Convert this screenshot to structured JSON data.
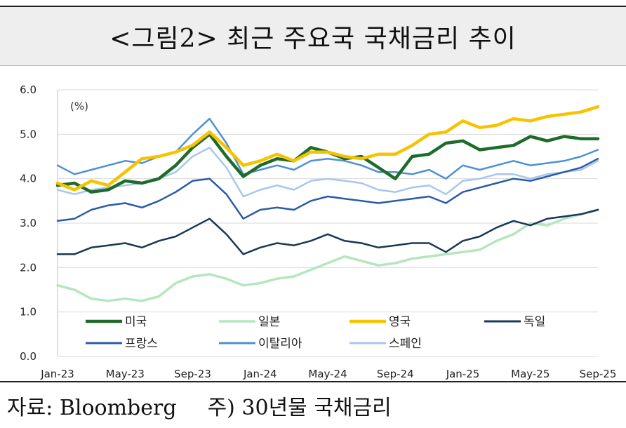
{
  "title": "<그림2> 최근 주요국 국채금리 추이",
  "footer": {
    "source": "자료: Bloomberg",
    "note": "주) 30년물 국채금리"
  },
  "chart_data": {
    "type": "line",
    "unit_label": "(%)",
    "ylim": [
      0.0,
      6.0
    ],
    "yticks": [
      "0.0",
      "1.0",
      "2.0",
      "3.0",
      "4.0",
      "5.0",
      "6.0"
    ],
    "xticks": [
      "Jan-23",
      "May-23",
      "Sep-23",
      "Jan-24",
      "May-24",
      "Sep-24",
      "Jan-25",
      "May-25",
      "Sep-25"
    ],
    "x": [
      "Jan-23",
      "Feb-23",
      "Mar-23",
      "Apr-23",
      "May-23",
      "Jun-23",
      "Jul-23",
      "Aug-23",
      "Sep-23",
      "Oct-23",
      "Nov-23",
      "Dec-23",
      "Jan-24",
      "Feb-24",
      "Mar-24",
      "Apr-24",
      "May-24",
      "Jun-24",
      "Jul-24",
      "Aug-24",
      "Sep-24",
      "Oct-24",
      "Nov-24",
      "Dec-24",
      "Jan-25",
      "Feb-25",
      "Mar-25",
      "Apr-25",
      "May-25",
      "Jun-25",
      "Jul-25",
      "Aug-25",
      "Sep-25"
    ],
    "grid": true,
    "legend_position": "bottom",
    "series": [
      {
        "name": "미국",
        "color": "#1f6b2a",
        "width": 4.5,
        "values": [
          3.85,
          3.9,
          3.7,
          3.75,
          3.95,
          3.9,
          4.0,
          4.3,
          4.7,
          5.0,
          4.5,
          4.05,
          4.3,
          4.45,
          4.4,
          4.7,
          4.6,
          4.45,
          4.5,
          4.25,
          4.0,
          4.5,
          4.55,
          4.8,
          4.85,
          4.65,
          4.7,
          4.75,
          4.95,
          4.85,
          4.95,
          4.9,
          4.9
        ]
      },
      {
        "name": "일본",
        "color": "#b5e6bd",
        "width": 3.5,
        "values": [
          1.6,
          1.5,
          1.3,
          1.25,
          1.3,
          1.25,
          1.35,
          1.65,
          1.8,
          1.85,
          1.75,
          1.6,
          1.65,
          1.75,
          1.8,
          1.95,
          2.1,
          2.25,
          2.15,
          2.05,
          2.1,
          2.2,
          2.25,
          2.3,
          2.35,
          2.4,
          2.6,
          2.75,
          3.0,
          2.95,
          3.1,
          3.2,
          3.3
        ]
      },
      {
        "name": "영국",
        "color": "#f7c300",
        "width": 4.5,
        "values": [
          3.9,
          3.75,
          3.95,
          3.85,
          4.15,
          4.45,
          4.5,
          4.6,
          4.75,
          5.05,
          4.7,
          4.3,
          4.4,
          4.55,
          4.4,
          4.6,
          4.6,
          4.5,
          4.45,
          4.55,
          4.55,
          4.75,
          5.0,
          5.05,
          5.3,
          5.15,
          5.2,
          5.35,
          5.3,
          5.4,
          5.45,
          5.5,
          5.62
        ]
      },
      {
        "name": "독일",
        "color": "#1a3857",
        "width": 2.5,
        "values": [
          2.3,
          2.3,
          2.45,
          2.5,
          2.55,
          2.45,
          2.6,
          2.7,
          2.9,
          3.1,
          2.75,
          2.3,
          2.45,
          2.55,
          2.5,
          2.6,
          2.75,
          2.6,
          2.55,
          2.45,
          2.5,
          2.55,
          2.55,
          2.35,
          2.6,
          2.7,
          2.9,
          3.05,
          2.95,
          3.1,
          3.15,
          3.2,
          3.3
        ]
      },
      {
        "name": "프랑스",
        "color": "#2b5ba6",
        "width": 2.5,
        "values": [
          3.05,
          3.1,
          3.3,
          3.4,
          3.45,
          3.35,
          3.5,
          3.7,
          3.95,
          4.0,
          3.65,
          3.1,
          3.3,
          3.35,
          3.3,
          3.5,
          3.6,
          3.55,
          3.5,
          3.45,
          3.5,
          3.55,
          3.6,
          3.45,
          3.7,
          3.8,
          3.9,
          4.0,
          3.95,
          4.05,
          4.15,
          4.25,
          4.45
        ]
      },
      {
        "name": "이탈리아",
        "color": "#4d90d4",
        "width": 2.5,
        "values": [
          4.3,
          4.1,
          4.2,
          4.3,
          4.4,
          4.35,
          4.5,
          4.6,
          5.0,
          5.35,
          4.8,
          4.1,
          4.2,
          4.3,
          4.2,
          4.4,
          4.45,
          4.4,
          4.3,
          4.15,
          4.15,
          4.1,
          4.2,
          4.0,
          4.3,
          4.2,
          4.3,
          4.4,
          4.3,
          4.35,
          4.4,
          4.5,
          4.65
        ]
      },
      {
        "name": "스페인",
        "color": "#a8c6ec",
        "width": 2.5,
        "values": [
          3.75,
          3.65,
          3.75,
          3.8,
          3.85,
          3.9,
          4.0,
          4.15,
          4.5,
          4.7,
          4.25,
          3.6,
          3.75,
          3.85,
          3.75,
          3.95,
          4.0,
          3.95,
          3.9,
          3.75,
          3.7,
          3.8,
          3.85,
          3.65,
          3.95,
          4.0,
          4.1,
          4.1,
          4.0,
          4.1,
          4.15,
          4.2,
          4.4
        ]
      }
    ]
  }
}
